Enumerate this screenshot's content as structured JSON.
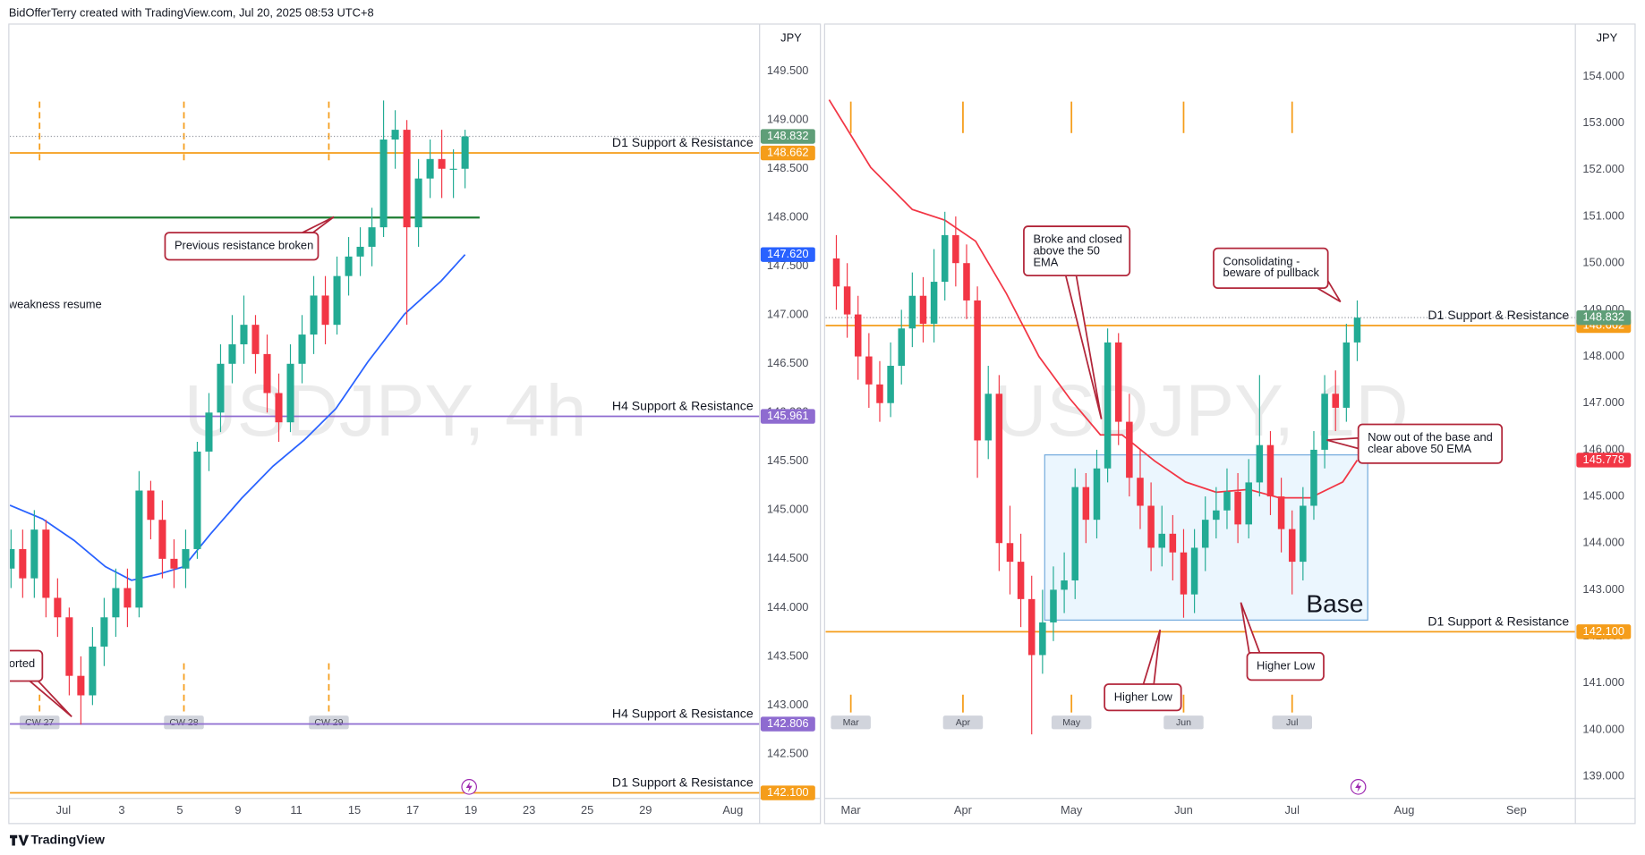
{
  "header": {
    "text": "BidOfferTerry created with TradingView.com, Jul 20, 2025 08:53 UTC+8"
  },
  "footer": {
    "brand": "TradingView"
  },
  "chart_data": [
    {
      "type": "candlestick",
      "watermark": "USDJPY, 4h",
      "currency": "JPY",
      "up_color": "#22ab94",
      "down_color": "#f23645",
      "grid": false,
      "xlim": [
        -0.92,
        11.96
      ],
      "ylim": [
        142.043,
        149.973
      ],
      "xticks": [
        {
          "value": 0,
          "label": "Jul"
        },
        {
          "value": 1,
          "label": "3"
        },
        {
          "value": 2,
          "label": "5"
        },
        {
          "value": 3,
          "label": "9"
        },
        {
          "value": 4,
          "label": "11"
        },
        {
          "value": 5,
          "label": "15"
        },
        {
          "value": 6,
          "label": "17"
        },
        {
          "value": 7,
          "label": "19"
        },
        {
          "value": 8,
          "label": "23"
        },
        {
          "value": 9,
          "label": "25"
        },
        {
          "value": 10,
          "label": "29"
        },
        {
          "value": 11.5,
          "label": "Aug"
        }
      ],
      "yticks": [
        {
          "value": 142.5,
          "label": "142.500"
        },
        {
          "value": 143,
          "label": "143.000"
        },
        {
          "value": 143.5,
          "label": "143.500"
        },
        {
          "value": 144,
          "label": "144.000"
        },
        {
          "value": 144.5,
          "label": "144.500"
        },
        {
          "value": 145,
          "label": "145.000"
        },
        {
          "value": 145.5,
          "label": "145.500"
        },
        {
          "value": 146,
          "label": "146.000"
        },
        {
          "value": 146.5,
          "label": "146.500"
        },
        {
          "value": 147,
          "label": "147.000"
        },
        {
          "value": 147.5,
          "label": "147.500"
        },
        {
          "value": 148,
          "label": "148.000"
        },
        {
          "value": 148.5,
          "label": "148.500"
        },
        {
          "value": 149,
          "label": "149.000"
        },
        {
          "value": 149.5,
          "label": "149.500"
        }
      ],
      "x": [
        -0.9,
        -0.7,
        -0.5,
        -0.3,
        -0.1,
        0.1,
        0.3,
        0.5,
        0.7,
        0.9,
        1.1,
        1.3,
        1.5,
        1.7,
        1.9,
        2.1,
        2.3,
        2.5,
        2.7,
        2.9,
        3.1,
        3.3,
        3.5,
        3.7,
        3.9,
        4.1,
        4.3,
        4.5,
        4.7,
        4.9,
        5.1,
        5.3,
        5.5,
        5.7,
        5.9,
        6.1,
        6.3,
        6.5,
        6.7,
        6.9
      ],
      "open": [
        144.4,
        144.6,
        144.3,
        144.8,
        144.1,
        143.9,
        143.3,
        143.1,
        143.6,
        143.9,
        144.2,
        144.0,
        145.2,
        144.9,
        144.5,
        144.4,
        144.6,
        145.6,
        146.0,
        146.5,
        146.7,
        146.9,
        146.6,
        146.2,
        145.9,
        146.5,
        146.8,
        147.2,
        146.9,
        147.4,
        147.6,
        147.7,
        147.9,
        148.8,
        148.9,
        147.9,
        148.4,
        148.6,
        148.5,
        148.5
      ],
      "high": [
        144.8,
        144.8,
        145.0,
        144.9,
        144.3,
        144.0,
        143.5,
        143.8,
        144.1,
        144.4,
        144.4,
        145.4,
        145.3,
        145.1,
        144.7,
        144.8,
        145.7,
        146.2,
        146.7,
        147.0,
        147.2,
        147.0,
        146.8,
        146.4,
        146.7,
        147.0,
        147.4,
        147.4,
        147.6,
        147.8,
        147.9,
        148.1,
        149.2,
        149.1,
        149.0,
        148.6,
        148.8,
        148.9,
        148.7,
        148.9
      ],
      "low": [
        144.2,
        144.1,
        144.1,
        143.9,
        143.7,
        143.1,
        142.8,
        143.0,
        143.4,
        143.7,
        143.8,
        143.9,
        144.7,
        144.3,
        144.2,
        144.2,
        144.5,
        145.4,
        145.8,
        146.3,
        146.5,
        146.4,
        146.0,
        145.7,
        145.8,
        146.3,
        146.6,
        146.7,
        146.8,
        147.2,
        147.4,
        147.5,
        147.8,
        148.5,
        146.9,
        147.7,
        148.2,
        148.2,
        148.2,
        148.3
      ],
      "close": [
        144.6,
        144.3,
        144.8,
        144.1,
        143.9,
        143.3,
        143.1,
        143.6,
        143.9,
        144.2,
        144.0,
        145.2,
        144.9,
        144.5,
        144.4,
        144.6,
        145.6,
        146.0,
        146.5,
        146.7,
        146.9,
        146.6,
        146.2,
        145.9,
        146.5,
        146.8,
        147.2,
        146.9,
        147.4,
        147.6,
        147.7,
        147.9,
        148.8,
        148.9,
        147.9,
        148.4,
        148.6,
        148.5,
        148.5,
        148.832
      ],
      "last_color": "#5f9e78",
      "ema": {
        "color": "#2962ff",
        "x": [
          -0.92,
          -0.36,
          0.18,
          0.72,
          1.17,
          1.62,
          2.07,
          2.52,
          3.06,
          3.6,
          4.14,
          4.68,
          5.23,
          5.86,
          6.49,
          6.9
        ],
        "values": [
          145.05,
          144.91,
          144.69,
          144.42,
          144.28,
          144.34,
          144.42,
          144.75,
          145.12,
          145.45,
          145.72,
          146.04,
          146.52,
          147.01,
          147.35,
          147.62
        ],
        "last_value_label": "147.620"
      },
      "levels": [
        {
          "name": "D1 Support & Resistance",
          "value": 148.662,
          "color": "#f59d1a"
        },
        {
          "value": 148.0,
          "color": "#1e7d32",
          "x_range": [
            -0.92,
            7.15
          ]
        },
        {
          "name": "H4 Support & Resistance",
          "value": 145.961,
          "color": "#8e6bd0"
        },
        {
          "name": "H4 Support & Resistance",
          "value": 142.806,
          "color": "#8e6bd0"
        },
        {
          "name": "D1 Support & Resistance",
          "value": 142.1,
          "value_label": "142.100",
          "color": "#f59d1a"
        }
      ],
      "session_breaks": [
        {
          "x": -0.41,
          "label": "CW 27"
        },
        {
          "x": 2.07,
          "label": "CW 28"
        },
        {
          "x": 4.56,
          "label": "CW 29"
        }
      ],
      "annotations": [
        {
          "lines": [
            "Previous resistance broken"
          ]
        },
        {
          "lines": [
            "weakness resume"
          ]
        },
        {
          "lines": [
            "orted"
          ]
        }
      ]
    },
    {
      "type": "candlestick",
      "watermark": "USDJPY, 1D",
      "currency": "JPY",
      "up_color": "#22ab94",
      "down_color": "#f23645",
      "grid": false,
      "xlim": [
        -6.96,
        200.3
      ],
      "ylim": [
        138.528,
        155.1
      ],
      "xticks": [
        {
          "value": 0,
          "label": "Mar"
        },
        {
          "value": 31,
          "label": "Apr"
        },
        {
          "value": 61,
          "label": "May"
        },
        {
          "value": 92,
          "label": "Jun"
        },
        {
          "value": 122,
          "label": "Jul"
        },
        {
          "value": 153,
          "label": "Aug"
        },
        {
          "value": 184,
          "label": "Sep"
        }
      ],
      "yticks": [
        {
          "value": 139,
          "label": "139.000"
        },
        {
          "value": 140,
          "label": "140.000"
        },
        {
          "value": 141,
          "label": "141.000"
        },
        {
          "value": 142,
          "label": "142.000"
        },
        {
          "value": 143,
          "label": "143.000"
        },
        {
          "value": 144,
          "label": "144.000"
        },
        {
          "value": 145,
          "label": "145.000"
        },
        {
          "value": 146,
          "label": "146.000"
        },
        {
          "value": 147,
          "label": "147.000"
        },
        {
          "value": 148,
          "label": "148.000"
        },
        {
          "value": 149,
          "label": "149.000"
        },
        {
          "value": 150,
          "label": "150.000"
        },
        {
          "value": 151,
          "label": "151.000"
        },
        {
          "value": 152,
          "label": "152.000"
        },
        {
          "value": 153,
          "label": "153.000"
        },
        {
          "value": 154,
          "label": "154.000"
        }
      ],
      "x": [
        -4,
        -1,
        2,
        5,
        8,
        11,
        14,
        17,
        20,
        23,
        26,
        29,
        32,
        35,
        38,
        41,
        44,
        47,
        50,
        53,
        56,
        59,
        62,
        65,
        68,
        71,
        74,
        77,
        80,
        83,
        86,
        89,
        92,
        95,
        98,
        101,
        104,
        107,
        110,
        113,
        116,
        119,
        122,
        125,
        128,
        131,
        134,
        137,
        140
      ],
      "open": [
        150.1,
        149.5,
        148.9,
        148.0,
        147.4,
        147.0,
        147.8,
        148.6,
        149.3,
        148.7,
        149.6,
        150.6,
        150.0,
        149.2,
        146.2,
        147.2,
        144.0,
        143.6,
        142.8,
        141.6,
        142.3,
        143.0,
        143.2,
        145.2,
        144.5,
        145.6,
        148.3,
        146.6,
        145.4,
        144.8,
        143.9,
        144.2,
        143.8,
        142.9,
        143.9,
        144.5,
        144.7,
        145.1,
        144.4,
        145.3,
        146.1,
        145.0,
        144.3,
        143.6,
        144.8,
        146.0,
        147.2,
        146.9,
        148.3
      ],
      "high": [
        150.6,
        150.0,
        149.3,
        148.5,
        147.9,
        148.3,
        149.0,
        149.8,
        149.7,
        150.3,
        151.1,
        151.0,
        150.4,
        149.5,
        147.8,
        147.6,
        144.8,
        144.2,
        143.3,
        143.0,
        143.5,
        143.8,
        145.6,
        145.5,
        146.0,
        148.6,
        148.5,
        147.2,
        146.0,
        145.3,
        144.8,
        144.6,
        144.3,
        144.3,
        145.0,
        145.2,
        145.6,
        145.5,
        145.8,
        147.6,
        146.4,
        145.4,
        144.7,
        145.2,
        146.4,
        147.6,
        147.7,
        148.7,
        149.2
      ],
      "low": [
        149.0,
        148.4,
        147.5,
        146.9,
        146.6,
        146.7,
        147.4,
        148.2,
        148.3,
        148.3,
        149.2,
        149.5,
        148.8,
        145.4,
        145.8,
        143.4,
        142.9,
        142.2,
        139.9,
        141.2,
        141.9,
        142.5,
        142.8,
        144.0,
        144.1,
        145.3,
        146.1,
        145.0,
        144.3,
        143.4,
        143.5,
        143.2,
        142.4,
        142.5,
        143.4,
        144.1,
        144.3,
        144.0,
        144.1,
        145.0,
        144.6,
        143.8,
        142.9,
        143.2,
        144.5,
        145.6,
        146.4,
        146.6,
        147.9
      ],
      "close": [
        149.5,
        148.9,
        148.0,
        147.4,
        147.0,
        147.8,
        148.6,
        149.3,
        148.7,
        149.6,
        150.6,
        150.0,
        149.2,
        146.2,
        147.2,
        144.0,
        143.6,
        142.8,
        141.6,
        142.3,
        143.0,
        143.2,
        145.2,
        144.5,
        145.6,
        148.3,
        146.6,
        145.4,
        144.8,
        143.9,
        144.2,
        143.8,
        142.9,
        143.9,
        144.5,
        144.7,
        145.1,
        144.4,
        145.3,
        146.1,
        145.0,
        144.3,
        143.6,
        144.8,
        146.0,
        147.2,
        146.9,
        148.3,
        148.832
      ],
      "last_color": "#5f9e78",
      "ema": {
        "color": "#f23645",
        "x": [
          -6,
          5.5,
          17,
          26,
          34.5,
          43,
          52,
          60.5,
          69,
          75,
          84,
          92.5,
          101,
          110,
          118.5,
          127,
          136,
          140
        ],
        "values": [
          153.5,
          152.05,
          151.15,
          150.92,
          150.47,
          149.35,
          148.0,
          147.1,
          146.32,
          146.32,
          145.76,
          145.31,
          145.09,
          145.15,
          144.97,
          144.97,
          145.31,
          145.778
        ],
        "last_value_label": "145.778"
      },
      "levels": [
        {
          "name": "D1 Support & Resistance",
          "value": 148.662,
          "color": "#f59d1a"
        },
        {
          "name": "D1 Support & Resistance",
          "value": 142.1,
          "value_label": "142.100",
          "color": "#f59d1a"
        }
      ],
      "session_breaks": [
        {
          "x": 0,
          "label": "Mar"
        },
        {
          "x": 31,
          "label": "Apr"
        },
        {
          "x": 61,
          "label": "May"
        },
        {
          "x": 92,
          "label": "Jun"
        },
        {
          "x": 122,
          "label": "Jul"
        }
      ],
      "base_zone": {
        "label": "Base",
        "x": [
          53.6,
          142.9
        ],
        "y": [
          142.35,
          145.89
        ]
      },
      "annotations": [
        {
          "lines": [
            "Broke and closed",
            "above the 50",
            "EMA"
          ]
        },
        {
          "lines": [
            "Consolidating -",
            "beware of pullback"
          ]
        },
        {
          "lines": [
            "Now out of the base and",
            "clear above 50 EMA"
          ]
        },
        {
          "lines": [
            "Higher Low"
          ]
        },
        {
          "lines": [
            "Higher Low"
          ]
        }
      ]
    }
  ]
}
